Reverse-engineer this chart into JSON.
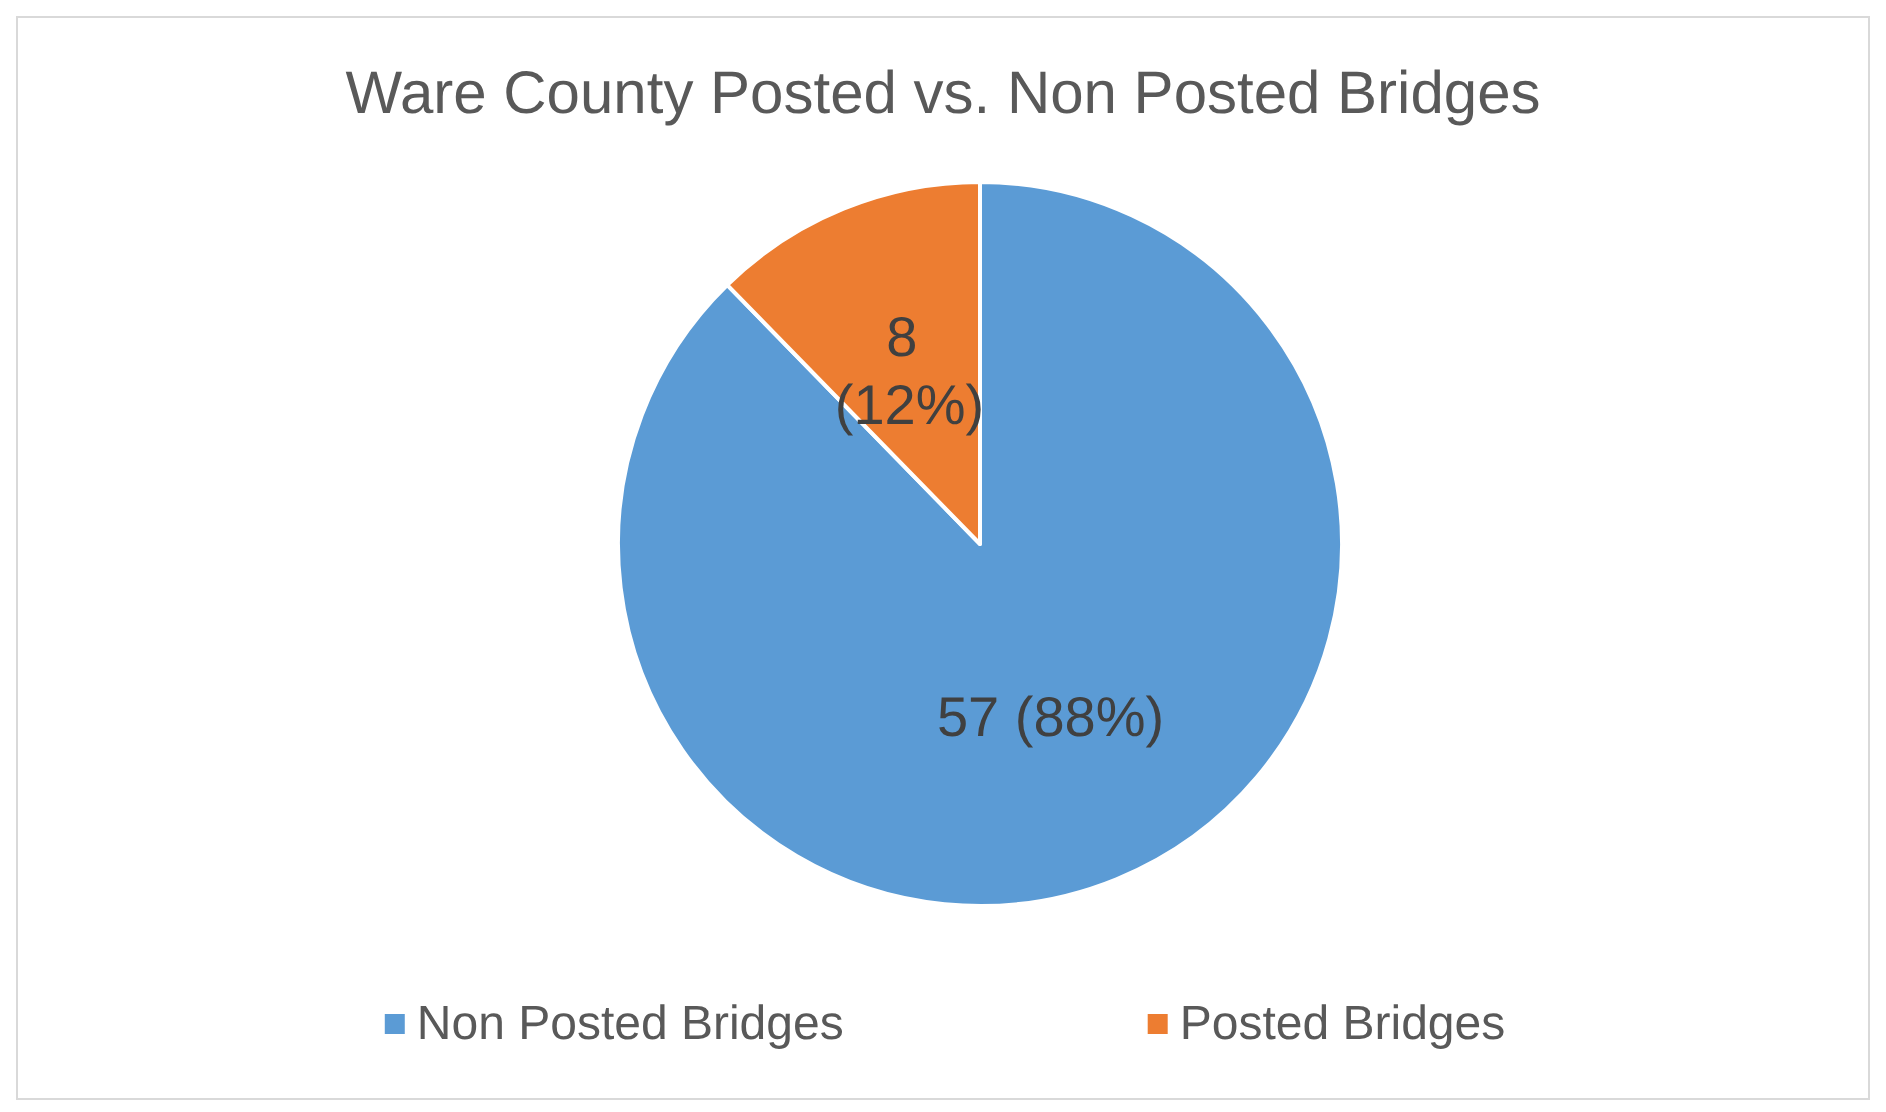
{
  "chart_data": {
    "type": "pie",
    "title": "Ware County Posted vs. Non Posted Bridges",
    "categories": [
      "Non Posted Bridges",
      "Posted Bridges"
    ],
    "values": [
      57,
      8
    ],
    "colors": [
      "#5b9bd5",
      "#ed7d31"
    ],
    "value_labels": [
      "57 (88%)",
      "8 (12%)"
    ],
    "legend": "bottom"
  }
}
